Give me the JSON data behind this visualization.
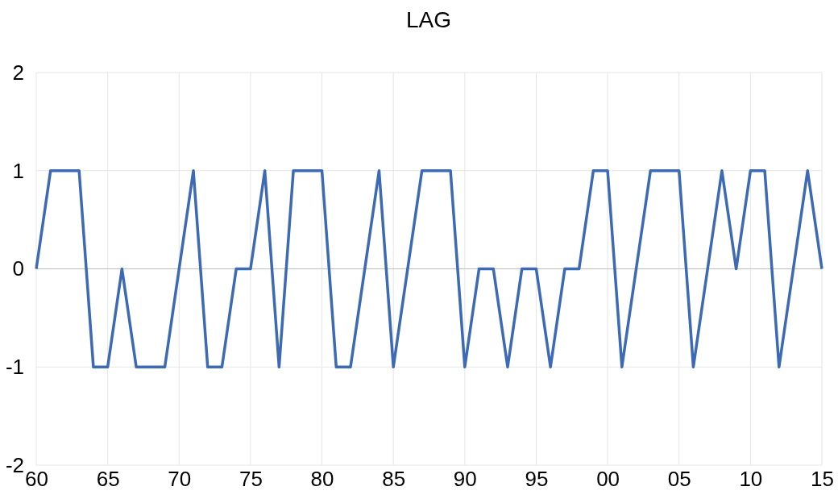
{
  "chart_data": {
    "type": "line",
    "title": "LAG",
    "x": [
      1960,
      1961,
      1962,
      1963,
      1964,
      1965,
      1966,
      1967,
      1968,
      1969,
      1970,
      1971,
      1972,
      1973,
      1974,
      1975,
      1976,
      1977,
      1978,
      1979,
      1980,
      1981,
      1982,
      1983,
      1984,
      1985,
      1986,
      1987,
      1988,
      1989,
      1990,
      1991,
      1992,
      1993,
      1994,
      1995,
      1996,
      1997,
      1998,
      1999,
      2000,
      2001,
      2002,
      2003,
      2004,
      2005,
      2006,
      2007,
      2008,
      2009,
      2010,
      2011,
      2012,
      2013,
      2014,
      2015
    ],
    "series": [
      {
        "color": "#3d6ab4",
        "values": [
          0,
          1,
          1,
          1,
          -1,
          -1,
          0,
          -1,
          -1,
          -1,
          0,
          1,
          -1,
          -1,
          0,
          0,
          1,
          -1,
          1,
          1,
          1,
          -1,
          -1,
          0,
          1,
          -1,
          0,
          1,
          1,
          1,
          -1,
          0,
          0,
          -1,
          0,
          0,
          -1,
          0,
          0,
          1,
          1,
          -1,
          0,
          1,
          1,
          1,
          -1,
          0,
          1,
          0,
          1,
          1,
          -1,
          0,
          1,
          0
        ]
      }
    ],
    "xlim": [
      1960,
      2015
    ],
    "xticks": [
      {
        "value": 1960,
        "label": "60"
      },
      {
        "value": 1965,
        "label": "65"
      },
      {
        "value": 1970,
        "label": "70"
      },
      {
        "value": 1975,
        "label": "75"
      },
      {
        "value": 1980,
        "label": "80"
      },
      {
        "value": 1985,
        "label": "85"
      },
      {
        "value": 1990,
        "label": "90"
      },
      {
        "value": 1995,
        "label": "95"
      },
      {
        "value": 2000,
        "label": "00"
      },
      {
        "value": 2005,
        "label": "05"
      },
      {
        "value": 2010,
        "label": "10"
      },
      {
        "value": 2015,
        "label": "15"
      }
    ],
    "ylim": [
      -2,
      2
    ],
    "yticks": [
      -2,
      -1,
      0,
      1,
      2
    ],
    "grid": true,
    "marker": "none",
    "line_style": "solid"
  }
}
